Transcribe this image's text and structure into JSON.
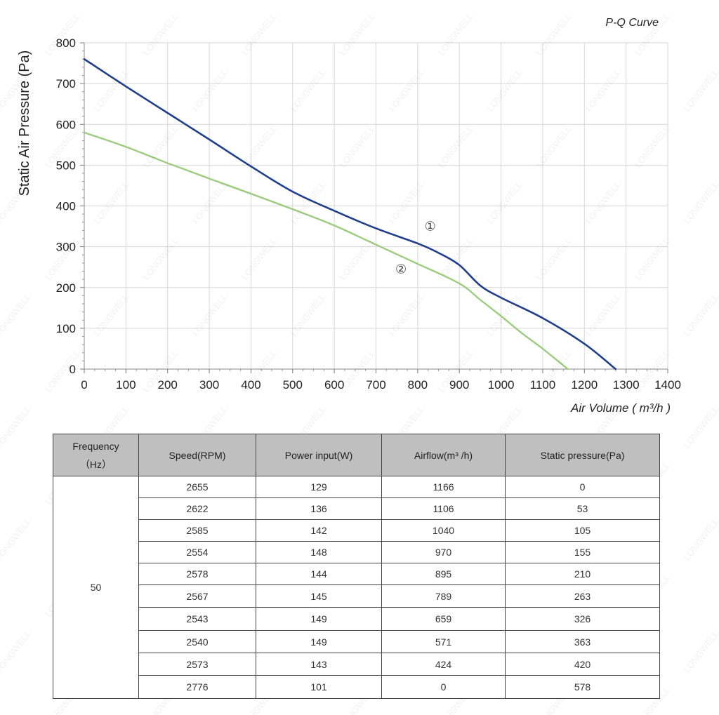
{
  "chart_data": {
    "type": "line",
    "title": "P-Q Curve",
    "xlabel": "Air Volume ( m³/h )",
    "ylabel": "Static Air Pressure  (Pa)",
    "xlim": [
      0,
      1400
    ],
    "ylim": [
      0,
      800
    ],
    "xticks": [
      "0",
      "100",
      "200",
      "300",
      "400",
      "500",
      "600",
      "700",
      "800",
      "900",
      "1000",
      "1100",
      "1200",
      "1300",
      "1400"
    ],
    "yticks": [
      "0",
      "100",
      "200",
      "300",
      "400",
      "500",
      "600",
      "700",
      "800"
    ],
    "grid": true,
    "series": [
      {
        "name": "①",
        "color": "#1f3f8c",
        "x": [
          0,
          100,
          200,
          300,
          400,
          500,
          600,
          700,
          800,
          850,
          900,
          950,
          1000,
          1100,
          1200,
          1275
        ],
        "y": [
          760,
          693,
          628,
          563,
          497,
          435,
          388,
          345,
          308,
          285,
          255,
          205,
          175,
          125,
          62,
          0
        ]
      },
      {
        "name": "②",
        "color": "#9ccc7d",
        "x": [
          0,
          100,
          200,
          300,
          400,
          500,
          600,
          700,
          800,
          900,
          950,
          1000,
          1050,
          1100,
          1160
        ],
        "y": [
          580,
          545,
          505,
          467,
          430,
          392,
          352,
          305,
          258,
          210,
          170,
          130,
          88,
          50,
          0
        ]
      }
    ],
    "annotations": [
      {
        "text": "①",
        "x": 830,
        "y": 340
      },
      {
        "text": "②",
        "x": 760,
        "y": 235
      }
    ]
  },
  "watermark": "LONGWELL",
  "table": {
    "headers": {
      "frequency_line1": "Frequency",
      "frequency_line2": "（Hz）",
      "speed": "Speed(RPM)",
      "power": "Power input(W)",
      "airflow": "Airflow(m³ /h)",
      "pressure": "Static pressure(Pa)"
    },
    "frequency_value": "50",
    "rows": [
      {
        "speed": "2655",
        "power": "129",
        "airflow": "1166",
        "pressure": "0"
      },
      {
        "speed": "2622",
        "power": "136",
        "airflow": "1106",
        "pressure": "53"
      },
      {
        "speed": "2585",
        "power": "142",
        "airflow": "1040",
        "pressure": "105"
      },
      {
        "speed": "2554",
        "power": "148",
        "airflow": "970",
        "pressure": "155"
      },
      {
        "speed": "2578",
        "power": "144",
        "airflow": "895",
        "pressure": "210"
      },
      {
        "speed": "2567",
        "power": "145",
        "airflow": "789",
        "pressure": "263"
      },
      {
        "speed": "2543",
        "power": "149",
        "airflow": "659",
        "pressure": "326"
      },
      {
        "speed": "2540",
        "power": "149",
        "airflow": "571",
        "pressure": "363"
      },
      {
        "speed": "2573",
        "power": "143",
        "airflow": "424",
        "pressure": "420"
      },
      {
        "speed": "2776",
        "power": "101",
        "airflow": "0",
        "pressure": "578"
      }
    ]
  }
}
